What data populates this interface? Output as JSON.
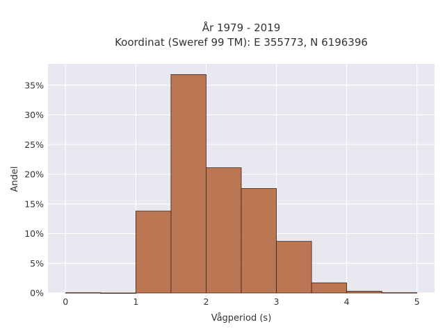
{
  "chart_data": {
    "type": "bar",
    "title": [
      "År 1979 - 2019",
      "Koordinat (Sweref 99 TM): E 355773, N 6196396"
    ],
    "xlabel": "Vågperiod (s)",
    "ylabel": "Andel",
    "bin_edges": [
      0,
      0.5,
      1,
      1.5,
      2,
      2.5,
      3,
      3.5,
      4,
      4.5,
      5
    ],
    "values": [
      0.0005,
      0.0,
      0.138,
      0.368,
      0.211,
      0.176,
      0.087,
      0.017,
      0.003,
      0.0005
    ],
    "xlim": [
      -0.25,
      5.25
    ],
    "ylim": [
      0,
      0.386
    ],
    "xticks": [
      0,
      1,
      2,
      3,
      4,
      5
    ],
    "xtick_labels": [
      "0",
      "1",
      "2",
      "3",
      "4",
      "5"
    ],
    "yticks": [
      0,
      0.05,
      0.1,
      0.15,
      0.2,
      0.25,
      0.3,
      0.35
    ],
    "ytick_labels": [
      "0%",
      "5%",
      "10%",
      "15%",
      "20%",
      "25%",
      "30%",
      "35%"
    ],
    "grid": true,
    "bar_color": "#b66b45",
    "bar_edge_color": "#3a2418",
    "plot_background": "#e8e8f0",
    "grid_color": "#ffffff"
  }
}
